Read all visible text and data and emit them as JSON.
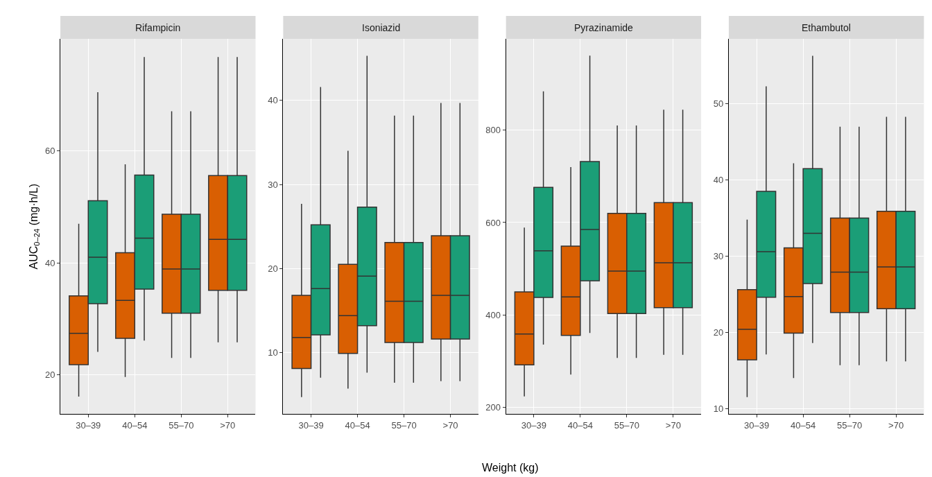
{
  "chart_data": [
    {
      "type": "box",
      "title": "Rifampicin",
      "ylabel": "AUC$_{0–24}$ (mg·h/L)",
      "categories": [
        "30–39",
        "40–54",
        "55–70",
        ">70"
      ],
      "ylim": [
        13,
        80
      ],
      "yticks": [
        20,
        40,
        60
      ],
      "grid": true,
      "series": [
        {
          "color": "#d95f02",
          "boxes": [
            {
              "low": 16.1,
              "q1": 21.8,
              "median": 27.4,
              "q3": 34.1,
              "high": 47.0
            },
            {
              "low": 19.6,
              "q1": 26.5,
              "median": 33.3,
              "q3": 41.8,
              "high": 57.6
            },
            {
              "low": 23.0,
              "q1": 31.0,
              "median": 38.9,
              "q3": 48.7,
              "high": 67.1
            },
            {
              "low": 25.8,
              "q1": 35.1,
              "median": 44.2,
              "q3": 55.6,
              "high": 76.8
            }
          ]
        },
        {
          "color": "#1b9e77",
          "boxes": [
            {
              "low": 24.1,
              "q1": 32.7,
              "median": 41.0,
              "q3": 51.1,
              "high": 70.5
            },
            {
              "low": 26.1,
              "q1": 35.3,
              "median": 44.4,
              "q3": 55.7,
              "high": 76.8
            },
            {
              "low": 23.0,
              "q1": 31.0,
              "median": 38.9,
              "q3": 48.7,
              "high": 67.1
            },
            {
              "low": 25.8,
              "q1": 35.1,
              "median": 44.2,
              "q3": 55.6,
              "high": 76.8
            }
          ]
        }
      ]
    },
    {
      "type": "box",
      "title": "Isoniazid",
      "xlabel": "Weight (kg)",
      "categories": [
        "30–39",
        "40–54",
        "55–70",
        ">70"
      ],
      "ylim": [
        2.7,
        47.3
      ],
      "yticks": [
        10,
        20,
        30,
        40
      ],
      "grid": true,
      "series": [
        {
          "color": "#d95f02",
          "boxes": [
            {
              "low": 4.7,
              "q1": 8.1,
              "median": 11.8,
              "q3": 16.8,
              "high": 27.7
            },
            {
              "low": 5.7,
              "q1": 9.9,
              "median": 14.4,
              "q3": 20.5,
              "high": 34.0
            },
            {
              "low": 6.4,
              "q1": 11.2,
              "median": 16.1,
              "q3": 23.1,
              "high": 38.2
            },
            {
              "low": 6.6,
              "q1": 11.6,
              "median": 16.8,
              "q3": 23.9,
              "high": 39.7
            }
          ]
        },
        {
          "color": "#1b9e77",
          "boxes": [
            {
              "low": 7.0,
              "q1": 12.1,
              "median": 17.6,
              "q3": 25.2,
              "high": 41.6
            },
            {
              "low": 7.6,
              "q1": 13.2,
              "median": 19.1,
              "q3": 27.3,
              "high": 45.3
            },
            {
              "low": 6.4,
              "q1": 11.2,
              "median": 16.1,
              "q3": 23.1,
              "high": 38.2
            },
            {
              "low": 6.6,
              "q1": 11.6,
              "median": 16.8,
              "q3": 23.9,
              "high": 39.7
            }
          ]
        }
      ]
    },
    {
      "type": "box",
      "title": "Pyrazinamide",
      "categories": [
        "30–39",
        "40–54",
        "55–70",
        ">70"
      ],
      "ylim": [
        186,
        997
      ],
      "yticks": [
        200,
        400,
        600,
        800
      ],
      "grid": true,
      "series": [
        {
          "color": "#d95f02",
          "boxes": [
            {
              "low": 224,
              "q1": 292,
              "median": 359,
              "q3": 450,
              "high": 589
            },
            {
              "low": 271,
              "q1": 356,
              "median": 439,
              "q3": 549,
              "high": 720
            },
            {
              "low": 307,
              "q1": 403,
              "median": 495,
              "q3": 620,
              "high": 810
            },
            {
              "low": 314,
              "q1": 416,
              "median": 513,
              "q3": 643,
              "high": 844
            }
          ]
        },
        {
          "color": "#1b9e77",
          "boxes": [
            {
              "low": 336,
              "q1": 438,
              "median": 539,
              "q3": 676,
              "high": 884
            },
            {
              "low": 361,
              "q1": 474,
              "median": 585,
              "q3": 732,
              "high": 961
            },
            {
              "low": 307,
              "q1": 403,
              "median": 495,
              "q3": 620,
              "high": 810
            },
            {
              "low": 314,
              "q1": 416,
              "median": 513,
              "q3": 643,
              "high": 844
            }
          ]
        }
      ]
    },
    {
      "type": "box",
      "title": "Ethambutol",
      "categories": [
        "30–39",
        "40–54",
        "55–70",
        ">70"
      ],
      "ylim": [
        9.3,
        58.5
      ],
      "yticks": [
        10,
        20,
        30,
        40,
        50
      ],
      "grid": true,
      "series": [
        {
          "color": "#d95f02",
          "boxes": [
            {
              "low": 11.5,
              "q1": 16.4,
              "median": 20.4,
              "q3": 25.6,
              "high": 34.8
            },
            {
              "low": 14.0,
              "q1": 19.9,
              "median": 24.7,
              "q3": 31.1,
              "high": 42.2
            },
            {
              "low": 15.7,
              "q1": 22.6,
              "median": 27.9,
              "q3": 35.0,
              "high": 47.0
            },
            {
              "low": 16.2,
              "q1": 23.1,
              "median": 28.6,
              "q3": 35.9,
              "high": 48.3
            }
          ]
        },
        {
          "color": "#1b9e77",
          "boxes": [
            {
              "low": 17.1,
              "q1": 24.6,
              "median": 30.6,
              "q3": 38.5,
              "high": 52.3
            },
            {
              "low": 18.6,
              "q1": 26.4,
              "median": 33.0,
              "q3": 41.5,
              "high": 56.3
            },
            {
              "low": 15.7,
              "q1": 22.6,
              "median": 27.9,
              "q3": 35.0,
              "high": 47.0
            },
            {
              "low": 16.2,
              "q1": 23.1,
              "median": 28.6,
              "q3": 35.9,
              "high": 48.3
            }
          ]
        }
      ]
    }
  ]
}
